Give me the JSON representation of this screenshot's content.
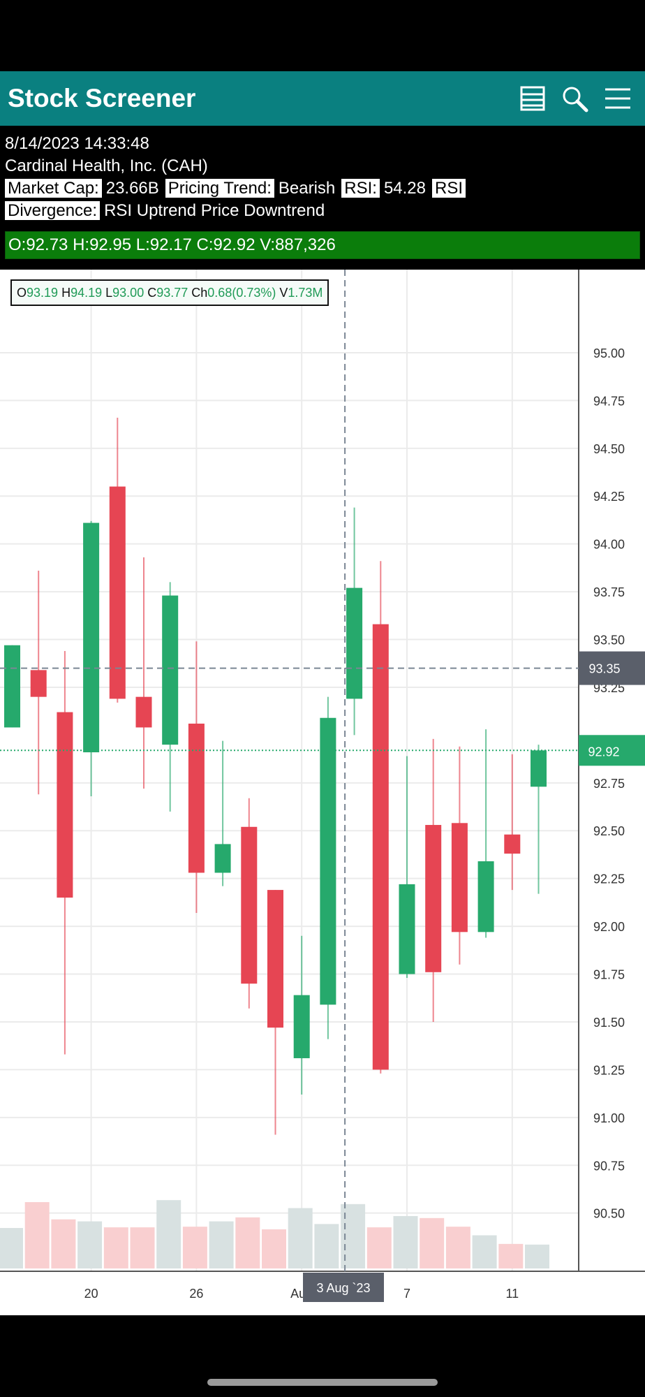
{
  "header": {
    "title": "Stock Screener",
    "icons": [
      "table-icon",
      "search-icon",
      "menu-icon"
    ]
  },
  "info": {
    "datetime": "8/14/2023 14:33:48",
    "company": "Cardinal Health, Inc. (CAH)",
    "market_cap_label": "Market Cap:",
    "market_cap_value": "23.66B",
    "pricing_trend_label": "Pricing Trend:",
    "pricing_trend_value": "Bearish",
    "rsi_label": "RSI:",
    "rsi_value": "54.28",
    "rsi_divergence_label_a": "RSI",
    "rsi_divergence_label_b": "Divergence:",
    "rsi_divergence_value": "RSI Uptrend Price Downtrend"
  },
  "ohlc_summary": "O:92.73 H:92.95 L:92.17 C:92.92 V:887,326",
  "legend": {
    "o_label": "O",
    "o_value": "93.19",
    "h_label": "H",
    "h_value": "94.19",
    "l_label": "L",
    "l_value": "93.00",
    "c_label": "C",
    "c_value": "93.77",
    "ch_label": "Ch",
    "ch_value": "0.68(0.73%)",
    "v_label": "V",
    "v_value": "1.73M"
  },
  "colors": {
    "header_bg": "#0a8080",
    "up": "#26a96c",
    "down": "#e64553",
    "up_volume": "#d8e1e1",
    "down_volume": "#f9cfd0",
    "ohlc_bar_bg": "#0b7d0b",
    "crosshair_label_bg": "#5a5f6a"
  },
  "chart_data": {
    "type": "candlestick",
    "y_ticks": [
      "95.00",
      "94.75",
      "94.50",
      "94.25",
      "94.00",
      "93.75",
      "93.50",
      "93.25",
      "92.75",
      "92.50",
      "92.25",
      "92.00",
      "91.75",
      "91.50",
      "91.25",
      "91.00",
      "90.75",
      "90.50"
    ],
    "ylim": [
      90.36,
      95.23
    ],
    "x_tick_labels": [
      {
        "label": "20",
        "index": 3
      },
      {
        "label": "26",
        "index": 7
      },
      {
        "label": "Aug",
        "index": 11
      },
      {
        "label": "7",
        "index": 15
      },
      {
        "label": "11",
        "index": 19
      }
    ],
    "crosshair": {
      "index": 13,
      "price_label": "93.35",
      "date_label": "3 Aug `23"
    },
    "last_price": "92.92",
    "candles": [
      {
        "o": 93.04,
        "h": 93.47,
        "l": 93.04,
        "c": 93.47
      },
      {
        "o": 93.34,
        "h": 93.86,
        "l": 92.69,
        "c": 93.2
      },
      {
        "o": 93.12,
        "h": 93.44,
        "l": 91.33,
        "c": 92.15
      },
      {
        "o": 92.91,
        "h": 94.12,
        "l": 92.68,
        "c": 94.11
      },
      {
        "o": 94.3,
        "h": 94.66,
        "l": 93.17,
        "c": 93.19
      },
      {
        "o": 93.2,
        "h": 93.93,
        "l": 92.72,
        "c": 93.04
      },
      {
        "o": 92.95,
        "h": 93.8,
        "l": 92.6,
        "c": 93.73
      },
      {
        "o": 93.06,
        "h": 93.49,
        "l": 92.07,
        "c": 92.28
      },
      {
        "o": 92.28,
        "h": 92.97,
        "l": 92.21,
        "c": 92.43
      },
      {
        "o": 92.52,
        "h": 92.67,
        "l": 91.57,
        "c": 91.7
      },
      {
        "o": 92.19,
        "h": 92.19,
        "l": 90.91,
        "c": 91.47
      },
      {
        "o": 91.31,
        "h": 91.95,
        "l": 91.12,
        "c": 91.64
      },
      {
        "o": 91.59,
        "h": 93.2,
        "l": 91.41,
        "c": 93.09
      },
      {
        "o": 93.19,
        "h": 94.19,
        "l": 93.0,
        "c": 93.77
      },
      {
        "o": 93.58,
        "h": 93.91,
        "l": 91.23,
        "c": 91.25
      },
      {
        "o": 91.75,
        "h": 92.89,
        "l": 91.73,
        "c": 92.22
      },
      {
        "o": 92.53,
        "h": 92.98,
        "l": 91.5,
        "c": 91.76
      },
      {
        "o": 92.54,
        "h": 92.94,
        "l": 91.8,
        "c": 91.97
      },
      {
        "o": 91.97,
        "h": 93.03,
        "l": 91.94,
        "c": 92.34
      },
      {
        "o": 92.48,
        "h": 92.9,
        "l": 92.19,
        "c": 92.38
      },
      {
        "o": 92.73,
        "h": 92.95,
        "l": 92.17,
        "c": 92.92
      }
    ],
    "volume_relative": [
      0.61,
      1.0,
      0.74,
      0.71,
      0.62,
      0.62,
      1.03,
      0.63,
      0.71,
      0.77,
      0.59,
      0.91,
      0.67,
      0.97,
      0.62,
      0.79,
      0.76,
      0.63,
      0.5,
      0.37,
      0.36
    ]
  }
}
